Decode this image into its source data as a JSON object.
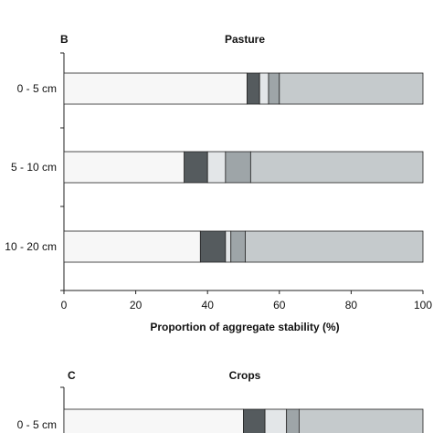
{
  "segment_colors": [
    "#f7f7f7",
    "#555b5e",
    "#e3e6e8",
    "#9ea5a8",
    "#c5cacc"
  ],
  "chart_data": [
    {
      "type": "bar",
      "orientation": "horizontal",
      "stacked": true,
      "panel_label": "B",
      "title": "Pasture",
      "xlabel": "Proportion of aggregate stability (%)",
      "xlim": [
        0,
        100
      ],
      "xticks": [
        "0",
        "20",
        "40",
        "60",
        "80",
        "100"
      ],
      "categories": [
        "0 - 5 cm",
        "5 - 10 cm",
        "10 - 20 cm"
      ],
      "segments": [
        [
          51,
          3.5,
          2.5,
          3,
          40
        ],
        [
          33.5,
          6.5,
          5,
          7,
          48
        ],
        [
          38,
          7,
          1.5,
          4,
          49.5
        ]
      ]
    },
    {
      "type": "bar",
      "orientation": "horizontal",
      "stacked": true,
      "panel_label": "C",
      "title": "Crops",
      "xlabel": "",
      "xlim": [
        0,
        100
      ],
      "categories": [
        "0 - 5 cm"
      ],
      "segments": [
        [
          50,
          6,
          6,
          3.5,
          34.5
        ]
      ]
    }
  ]
}
